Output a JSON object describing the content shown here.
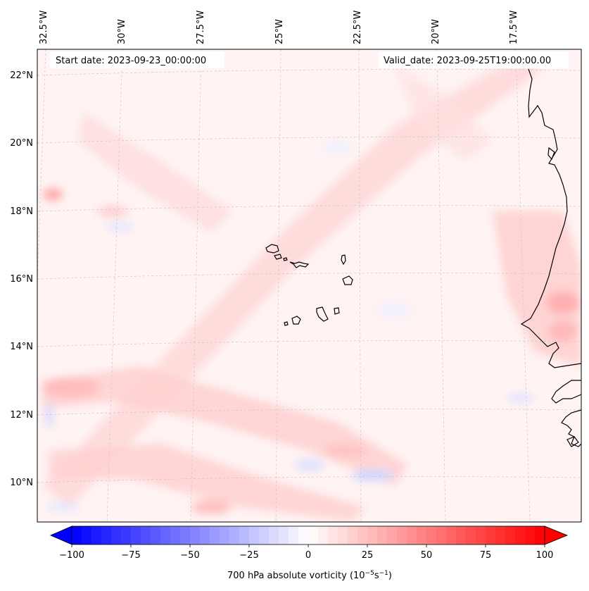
{
  "map": {
    "start_label": "Start date: 2023-09-23_00:00:00",
    "valid_label": "Valid_date: 2023-09-25T19:00:00.00",
    "top_lon_labels": [
      "32.5°W",
      "30°W",
      "27.5°W",
      "25°W",
      "22.5°W",
      "20°W",
      "17.5°W"
    ],
    "left_lat_labels": [
      "22°N",
      "20°N",
      "18°N",
      "16°N",
      "14°N",
      "12°N",
      "10°N"
    ],
    "coast_color": "#000000",
    "gridline_color": "#c8c8c8"
  },
  "colorbar": {
    "title_prefix": "700 hPa absolute vorticity (10",
    "title_exp1": "−5",
    "title_mid": "s",
    "title_exp2": "−1",
    "title_suffix": ")",
    "tick_labels": [
      "−100",
      "−75",
      "−50",
      "−25",
      "0",
      "25",
      "50",
      "75",
      "100"
    ],
    "vmin": -100,
    "vmax": 100,
    "levels": 48,
    "cmap": "bwr",
    "extend": "both",
    "low_color": "#0000ff",
    "mid_color": "#ffffff",
    "high_color": "#ff0000"
  }
}
